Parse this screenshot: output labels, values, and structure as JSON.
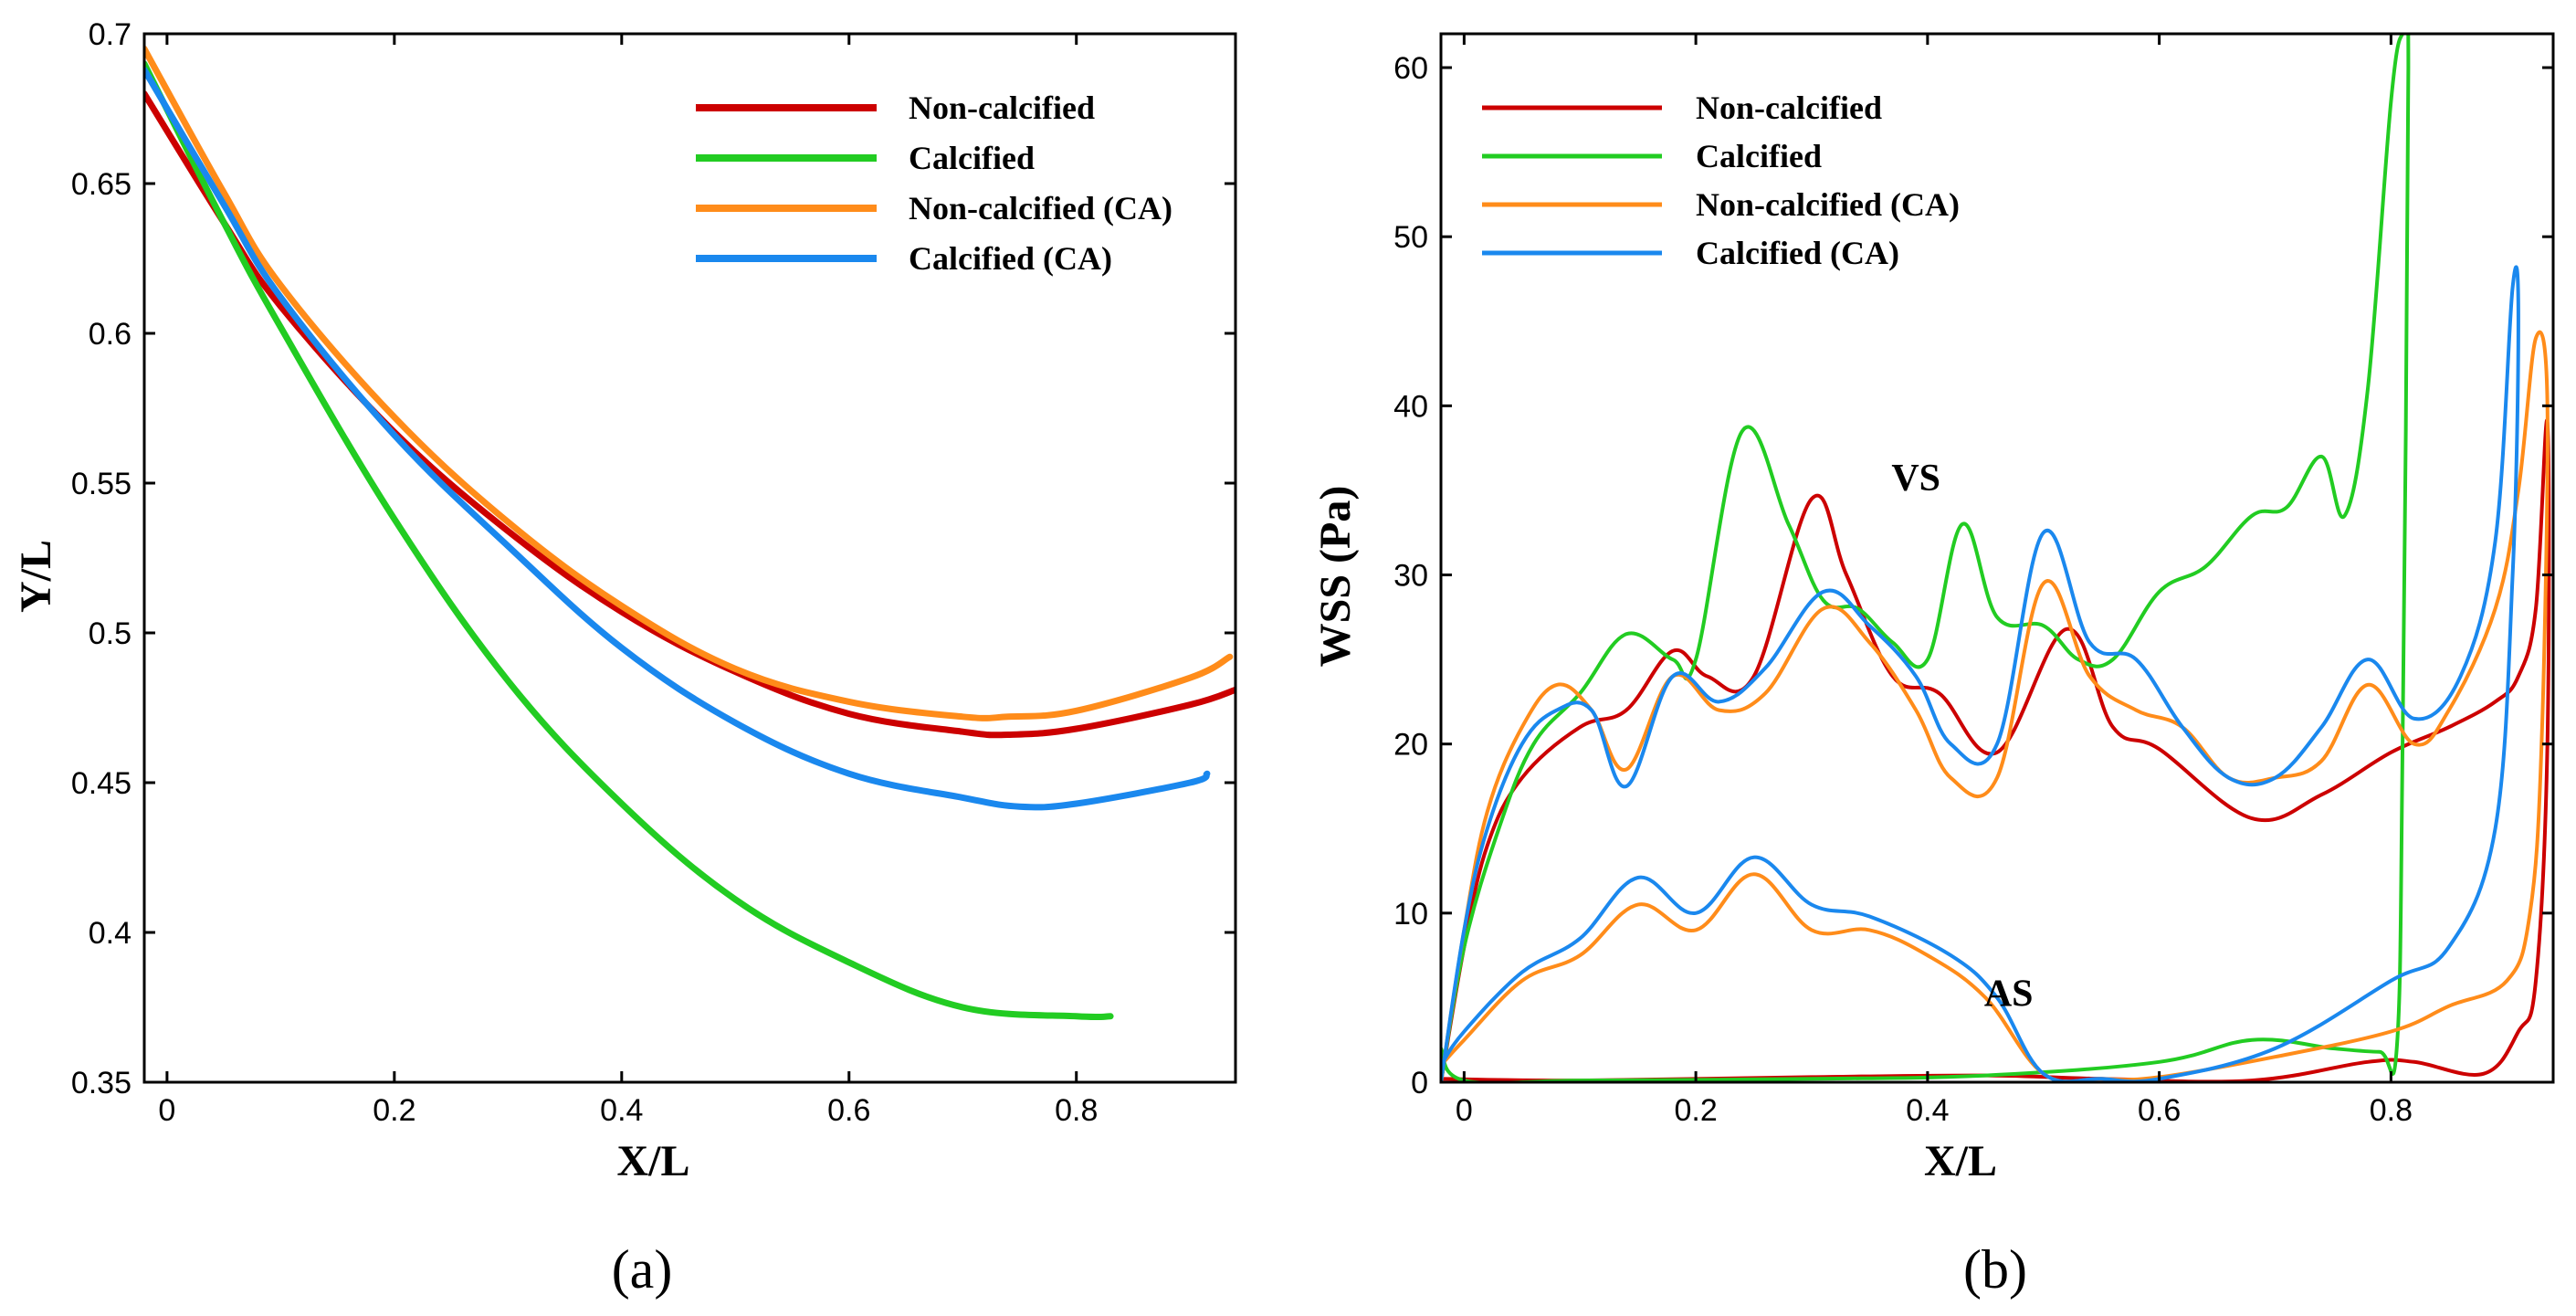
{
  "chart_data": [
    {
      "type": "line",
      "panel_label": "(a)",
      "xlabel": "X/L",
      "ylabel": "Y/L",
      "xlim": [
        -0.02,
        0.94
      ],
      "ylim": [
        0.35,
        0.7
      ],
      "xticks": [
        0,
        0.2,
        0.4,
        0.6,
        0.8
      ],
      "xtick_labels": [
        "0",
        "0.2",
        "0.4",
        "0.6",
        "0.8"
      ],
      "yticks": [
        0.35,
        0.4,
        0.45,
        0.5,
        0.55,
        0.6,
        0.65,
        0.7
      ],
      "ytick_labels": [
        "0.35",
        "0.4",
        "0.45",
        "0.5",
        "0.55",
        "0.6",
        "0.65",
        "0.7"
      ],
      "grid": false,
      "legend_position": "top-right",
      "series": [
        {
          "name": "Non-calcified",
          "color": "#cc0000",
          "x": [
            -0.02,
            0.05,
            0.1,
            0.2,
            0.3,
            0.4,
            0.5,
            0.6,
            0.7,
            0.74,
            0.8,
            0.9,
            0.94
          ],
          "y": [
            0.68,
            0.637,
            0.609,
            0.567,
            0.534,
            0.507,
            0.487,
            0.473,
            0.467,
            0.466,
            0.468,
            0.476,
            0.481
          ]
        },
        {
          "name": "Calcified",
          "color": "#22cc22",
          "x": [
            -0.02,
            0.05,
            0.1,
            0.2,
            0.3,
            0.4,
            0.5,
            0.6,
            0.7,
            0.8,
            0.83
          ],
          "y": [
            0.69,
            0.637,
            0.602,
            0.538,
            0.484,
            0.443,
            0.411,
            0.39,
            0.375,
            0.372,
            0.372
          ]
        },
        {
          "name": "Non-calcified (CA)",
          "color": "#ff8c1a",
          "x": [
            -0.02,
            0.05,
            0.1,
            0.2,
            0.3,
            0.4,
            0.5,
            0.6,
            0.7,
            0.74,
            0.8,
            0.9,
            0.935
          ],
          "y": [
            0.695,
            0.647,
            0.616,
            0.572,
            0.537,
            0.509,
            0.488,
            0.477,
            0.472,
            0.472,
            0.474,
            0.485,
            0.492
          ]
        },
        {
          "name": "Calcified (CA)",
          "color": "#1a88ee",
          "x": [
            -0.02,
            0.05,
            0.1,
            0.2,
            0.3,
            0.4,
            0.5,
            0.6,
            0.7,
            0.75,
            0.8,
            0.9,
            0.915
          ],
          "y": [
            0.688,
            0.643,
            0.612,
            0.566,
            0.529,
            0.495,
            0.47,
            0.453,
            0.445,
            0.442,
            0.443,
            0.45,
            0.453
          ]
        }
      ]
    },
    {
      "type": "line",
      "panel_label": "(b)",
      "xlabel": "X/L",
      "ylabel": "WSS (Pa)",
      "xlim": [
        -0.02,
        0.94
      ],
      "ylim": [
        0,
        62
      ],
      "xticks": [
        0,
        0.2,
        0.4,
        0.6,
        0.8
      ],
      "xtick_labels": [
        "0",
        "0.2",
        "0.4",
        "0.6",
        "0.8"
      ],
      "yticks": [
        0,
        10,
        20,
        30,
        40,
        50,
        60
      ],
      "ytick_labels": [
        "0",
        "10",
        "20",
        "30",
        "40",
        "50",
        "60"
      ],
      "grid": false,
      "legend_position": "top-left",
      "annotations": [
        {
          "text": "VS",
          "x": 0.39,
          "y": 35
        },
        {
          "text": "AS",
          "x": 0.47,
          "y": 4.5
        }
      ],
      "series": [
        {
          "name": "Non-calcified",
          "color": "#cc0000",
          "x": [
            -0.02,
            0.0,
            0.02,
            0.05,
            0.1,
            0.14,
            0.18,
            0.21,
            0.25,
            0.3,
            0.33,
            0.37,
            0.41,
            0.46,
            0.52,
            0.56,
            0.6,
            0.68,
            0.74,
            0.8,
            0.85,
            0.89,
            0.91,
            0.925,
            0.935,
            0.935,
            0.925,
            0.91,
            0.88,
            0.82,
            0.78,
            0.68,
            0.55,
            0.45,
            0.3,
            0.1,
            -0.02
          ],
          "y": [
            0,
            8,
            14,
            18,
            21,
            22,
            25.5,
            24,
            24,
            34.5,
            30,
            24,
            23,
            19.5,
            26.8,
            21,
            19.7,
            15.6,
            17,
            19.5,
            21,
            22.5,
            24,
            28,
            39,
            20,
            6,
            3,
            0.5,
            1.2,
            1.2,
            0.1,
            0.2,
            0.4,
            0.3,
            0.1,
            0.2
          ]
        },
        {
          "name": "Calcified",
          "color": "#22cc22",
          "x": [
            -0.02,
            0.0,
            0.03,
            0.06,
            0.1,
            0.14,
            0.18,
            0.2,
            0.24,
            0.28,
            0.31,
            0.34,
            0.37,
            0.4,
            0.43,
            0.46,
            0.5,
            0.53,
            0.56,
            0.6,
            0.64,
            0.68,
            0.71,
            0.74,
            0.76,
            0.78,
            0.8,
            0.81,
            0.815,
            0.81,
            0.805,
            0.79,
            0.75,
            0.68,
            0.6,
            0.45,
            0.3,
            0.1,
            0.0,
            -0.02
          ],
          "y": [
            0,
            8,
            15,
            20,
            23,
            26.5,
            25,
            25,
            38.5,
            33,
            28.5,
            28,
            26,
            25,
            33,
            27.5,
            27,
            25,
            25,
            29,
            30.5,
            33.5,
            34,
            37,
            33.5,
            41,
            58,
            62,
            60,
            20,
            2,
            1.8,
            2,
            2.5,
            1.2,
            0.4,
            0.2,
            0.1,
            0.1,
            2
          ]
        },
        {
          "name": "Non-calcified (CA)",
          "color": "#ff8c1a",
          "x": [
            -0.02,
            0.0,
            0.02,
            0.05,
            0.08,
            0.11,
            0.14,
            0.18,
            0.22,
            0.26,
            0.31,
            0.35,
            0.39,
            0.42,
            0.46,
            0.5,
            0.54,
            0.58,
            0.62,
            0.66,
            0.7,
            0.74,
            0.78,
            0.82,
            0.85,
            0.89,
            0.91,
            0.925,
            0.935,
            0.93,
            0.92,
            0.9,
            0.85,
            0.8,
            0.7,
            0.6,
            0.55,
            0.5,
            0.45,
            0.4,
            0.35,
            0.3,
            0.25,
            0.2,
            0.15,
            0.1,
            0.05,
            0.0,
            -0.02
          ],
          "y": [
            0,
            9,
            16,
            21,
            23.5,
            22,
            18.5,
            24,
            22,
            23,
            28,
            26,
            22,
            18,
            18,
            29.5,
            24,
            22,
            21,
            18,
            18,
            19,
            23.5,
            20,
            22,
            28,
            35,
            44,
            40,
            20,
            10,
            6,
            4.5,
            3,
            1.5,
            0.3,
            0.2,
            0.5,
            5,
            7.5,
            9,
            9,
            12.3,
            9,
            10.5,
            7.5,
            6,
            2.5,
            1
          ]
        },
        {
          "name": "Calcified (CA)",
          "color": "#1a88ee",
          "x": [
            -0.02,
            0.0,
            0.02,
            0.05,
            0.08,
            0.11,
            0.14,
            0.18,
            0.22,
            0.26,
            0.31,
            0.35,
            0.39,
            0.42,
            0.46,
            0.5,
            0.54,
            0.58,
            0.62,
            0.66,
            0.7,
            0.74,
            0.78,
            0.82,
            0.86,
            0.89,
            0.905,
            0.91,
            0.905,
            0.89,
            0.85,
            0.8,
            0.7,
            0.6,
            0.55,
            0.5,
            0.46,
            0.42,
            0.35,
            0.3,
            0.25,
            0.2,
            0.15,
            0.1,
            0.05,
            0.0,
            -0.02
          ],
          "y": [
            0,
            9,
            15,
            20,
            22,
            22,
            17.5,
            24,
            22.5,
            24.5,
            29,
            27,
            24,
            20,
            20,
            32.5,
            26,
            25,
            21,
            18,
            18,
            21,
            25,
            21.5,
            24,
            32,
            47,
            45,
            30,
            15,
            8,
            6,
            2,
            0.2,
            0.2,
            0.5,
            5,
            7.5,
            9.8,
            10.5,
            13.3,
            10,
            12.1,
            8.5,
            6.5,
            3,
            1
          ]
        }
      ]
    }
  ]
}
